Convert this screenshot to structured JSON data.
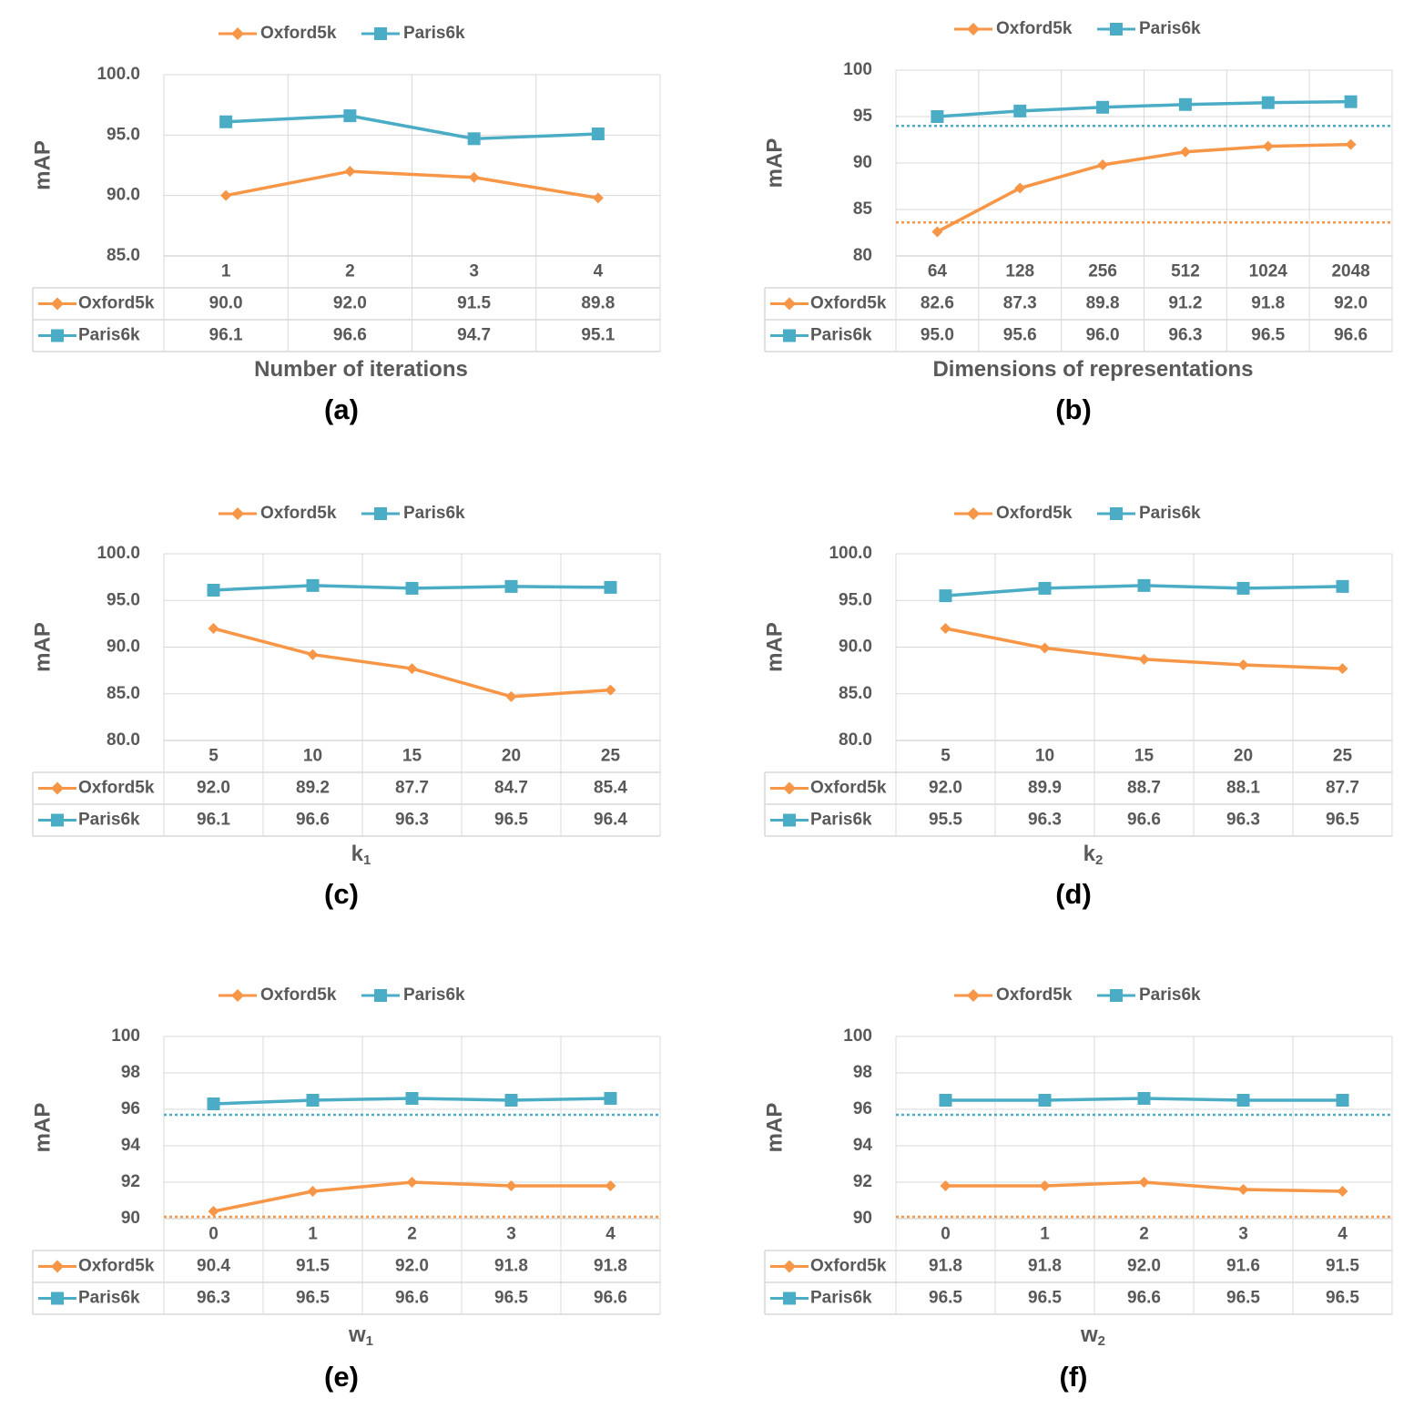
{
  "colors": {
    "oxford": "#F79646",
    "paris": "#4BACC6",
    "grid": "#D9D9D9",
    "text": "#595959",
    "panel_label": "#000000"
  },
  "chart_data": [
    {
      "type": "line",
      "panel_label": "(a)",
      "xlabel": "Number of iterations",
      "xlabel_sub": "",
      "ylabel": "mAP",
      "legend_position": "top",
      "categories": [
        "1",
        "2",
        "3",
        "4"
      ],
      "ylim": [
        85,
        100
      ],
      "ytick_values": [
        85,
        90,
        95,
        100
      ],
      "ytick_labels": [
        "85.0",
        "90.0",
        "95.0",
        "100.0"
      ],
      "series": [
        {
          "name": "Oxford5k",
          "marker": "diamond",
          "values": [
            90.0,
            92.0,
            91.5,
            89.8
          ],
          "labels": [
            "90.0",
            "92.0",
            "91.5",
            "89.8"
          ]
        },
        {
          "name": "Paris6k",
          "marker": "square",
          "values": [
            96.1,
            96.6,
            94.7,
            95.1
          ],
          "labels": [
            "96.1",
            "96.6",
            "94.7",
            "95.1"
          ]
        }
      ],
      "baselines": []
    },
    {
      "type": "line",
      "panel_label": "(b)",
      "xlabel": "Dimensions of  representations",
      "xlabel_sub": "",
      "ylabel": "mAP",
      "legend_position": "top",
      "categories": [
        "64",
        "128",
        "256",
        "512",
        "1024",
        "2048"
      ],
      "ylim": [
        80,
        100
      ],
      "ytick_values": [
        80,
        85,
        90,
        95,
        100
      ],
      "ytick_labels": [
        "80",
        "85",
        "90",
        "95",
        "100"
      ],
      "series": [
        {
          "name": "Oxford5k",
          "marker": "diamond",
          "values": [
            82.6,
            87.3,
            89.8,
            91.2,
            91.8,
            92.0
          ],
          "labels": [
            "82.6",
            "87.3",
            "89.8",
            "91.2",
            "91.8",
            "92.0"
          ]
        },
        {
          "name": "Paris6k",
          "marker": "square",
          "values": [
            95.0,
            95.6,
            96.0,
            96.3,
            96.5,
            96.6
          ],
          "labels": [
            "95.0",
            "95.6",
            "96.0",
            "96.3",
            "96.5",
            "96.6"
          ]
        }
      ],
      "baselines": [
        {
          "series": "Paris6k",
          "value": 94.0
        },
        {
          "series": "Oxford5k",
          "value": 83.6
        }
      ]
    },
    {
      "type": "line",
      "panel_label": "(c)",
      "xlabel": "k",
      "xlabel_sub": "1",
      "ylabel": "mAP",
      "legend_position": "top",
      "categories": [
        "5",
        "10",
        "15",
        "20",
        "25"
      ],
      "ylim": [
        80,
        100
      ],
      "ytick_values": [
        80,
        85,
        90,
        95,
        100
      ],
      "ytick_labels": [
        "80.0",
        "85.0",
        "90.0",
        "95.0",
        "100.0"
      ],
      "series": [
        {
          "name": "Oxford5k",
          "marker": "diamond",
          "values": [
            92.0,
            89.2,
            87.7,
            84.7,
            85.4
          ],
          "labels": [
            "92.0",
            "89.2",
            "87.7",
            "84.7",
            "85.4"
          ]
        },
        {
          "name": "Paris6k",
          "marker": "square",
          "values": [
            96.1,
            96.6,
            96.3,
            96.5,
            96.4
          ],
          "labels": [
            "96.1",
            "96.6",
            "96.3",
            "96.5",
            "96.4"
          ]
        }
      ],
      "baselines": []
    },
    {
      "type": "line",
      "panel_label": "(d)",
      "xlabel": "k",
      "xlabel_sub": "2",
      "ylabel": "mAP",
      "legend_position": "top",
      "categories": [
        "5",
        "10",
        "15",
        "20",
        "25"
      ],
      "ylim": [
        80,
        100
      ],
      "ytick_values": [
        80,
        85,
        90,
        95,
        100
      ],
      "ytick_labels": [
        "80.0",
        "85.0",
        "90.0",
        "95.0",
        "100.0"
      ],
      "series": [
        {
          "name": "Oxford5k",
          "marker": "diamond",
          "values": [
            92.0,
            89.9,
            88.7,
            88.1,
            87.7
          ],
          "labels": [
            "92.0",
            "89.9",
            "88.7",
            "88.1",
            "87.7"
          ]
        },
        {
          "name": "Paris6k",
          "marker": "square",
          "values": [
            95.5,
            96.3,
            96.6,
            96.3,
            96.5
          ],
          "labels": [
            "95.5",
            "96.3",
            "96.6",
            "96.3",
            "96.5"
          ]
        }
      ],
      "baselines": []
    },
    {
      "type": "line",
      "panel_label": "(e)",
      "xlabel": "w",
      "xlabel_sub": "1",
      "ylabel": "mAP",
      "legend_position": "top",
      "categories": [
        "0",
        "1",
        "2",
        "3",
        "4"
      ],
      "ylim": [
        90,
        100
      ],
      "ytick_values": [
        90,
        92,
        94,
        96,
        98,
        100
      ],
      "ytick_labels": [
        "90",
        "92",
        "94",
        "96",
        "98",
        "100"
      ],
      "series": [
        {
          "name": "Oxford5k",
          "marker": "diamond",
          "values": [
            90.4,
            91.5,
            92.0,
            91.8,
            91.8
          ],
          "labels": [
            "90.4",
            "91.5",
            "92.0",
            "91.8",
            "91.8"
          ]
        },
        {
          "name": "Paris6k",
          "marker": "square",
          "values": [
            96.3,
            96.5,
            96.6,
            96.5,
            96.6
          ],
          "labels": [
            "96.3",
            "96.5",
            "96.6",
            "96.5",
            "96.6"
          ]
        }
      ],
      "baselines": [
        {
          "series": "Paris6k",
          "value": 95.7
        },
        {
          "series": "Oxford5k",
          "value": 90.1
        }
      ]
    },
    {
      "type": "line",
      "panel_label": "(f)",
      "xlabel": "w",
      "xlabel_sub": "2",
      "ylabel": "mAP",
      "legend_position": "top",
      "categories": [
        "0",
        "1",
        "2",
        "3",
        "4"
      ],
      "ylim": [
        90,
        100
      ],
      "ytick_values": [
        90,
        92,
        94,
        96,
        98,
        100
      ],
      "ytick_labels": [
        "90",
        "92",
        "94",
        "96",
        "98",
        "100"
      ],
      "series": [
        {
          "name": "Oxford5k",
          "marker": "diamond",
          "values": [
            91.8,
            91.8,
            92.0,
            91.6,
            91.5
          ],
          "labels": [
            "91.8",
            "91.8",
            "92.0",
            "91.6",
            "91.5"
          ]
        },
        {
          "name": "Paris6k",
          "marker": "square",
          "values": [
            96.5,
            96.5,
            96.6,
            96.5,
            96.5
          ],
          "labels": [
            "96.5",
            "96.5",
            "96.6",
            "96.5",
            "96.5"
          ]
        }
      ],
      "baselines": [
        {
          "series": "Paris6k",
          "value": 95.7
        },
        {
          "series": "Oxford5k",
          "value": 90.1
        }
      ]
    }
  ]
}
